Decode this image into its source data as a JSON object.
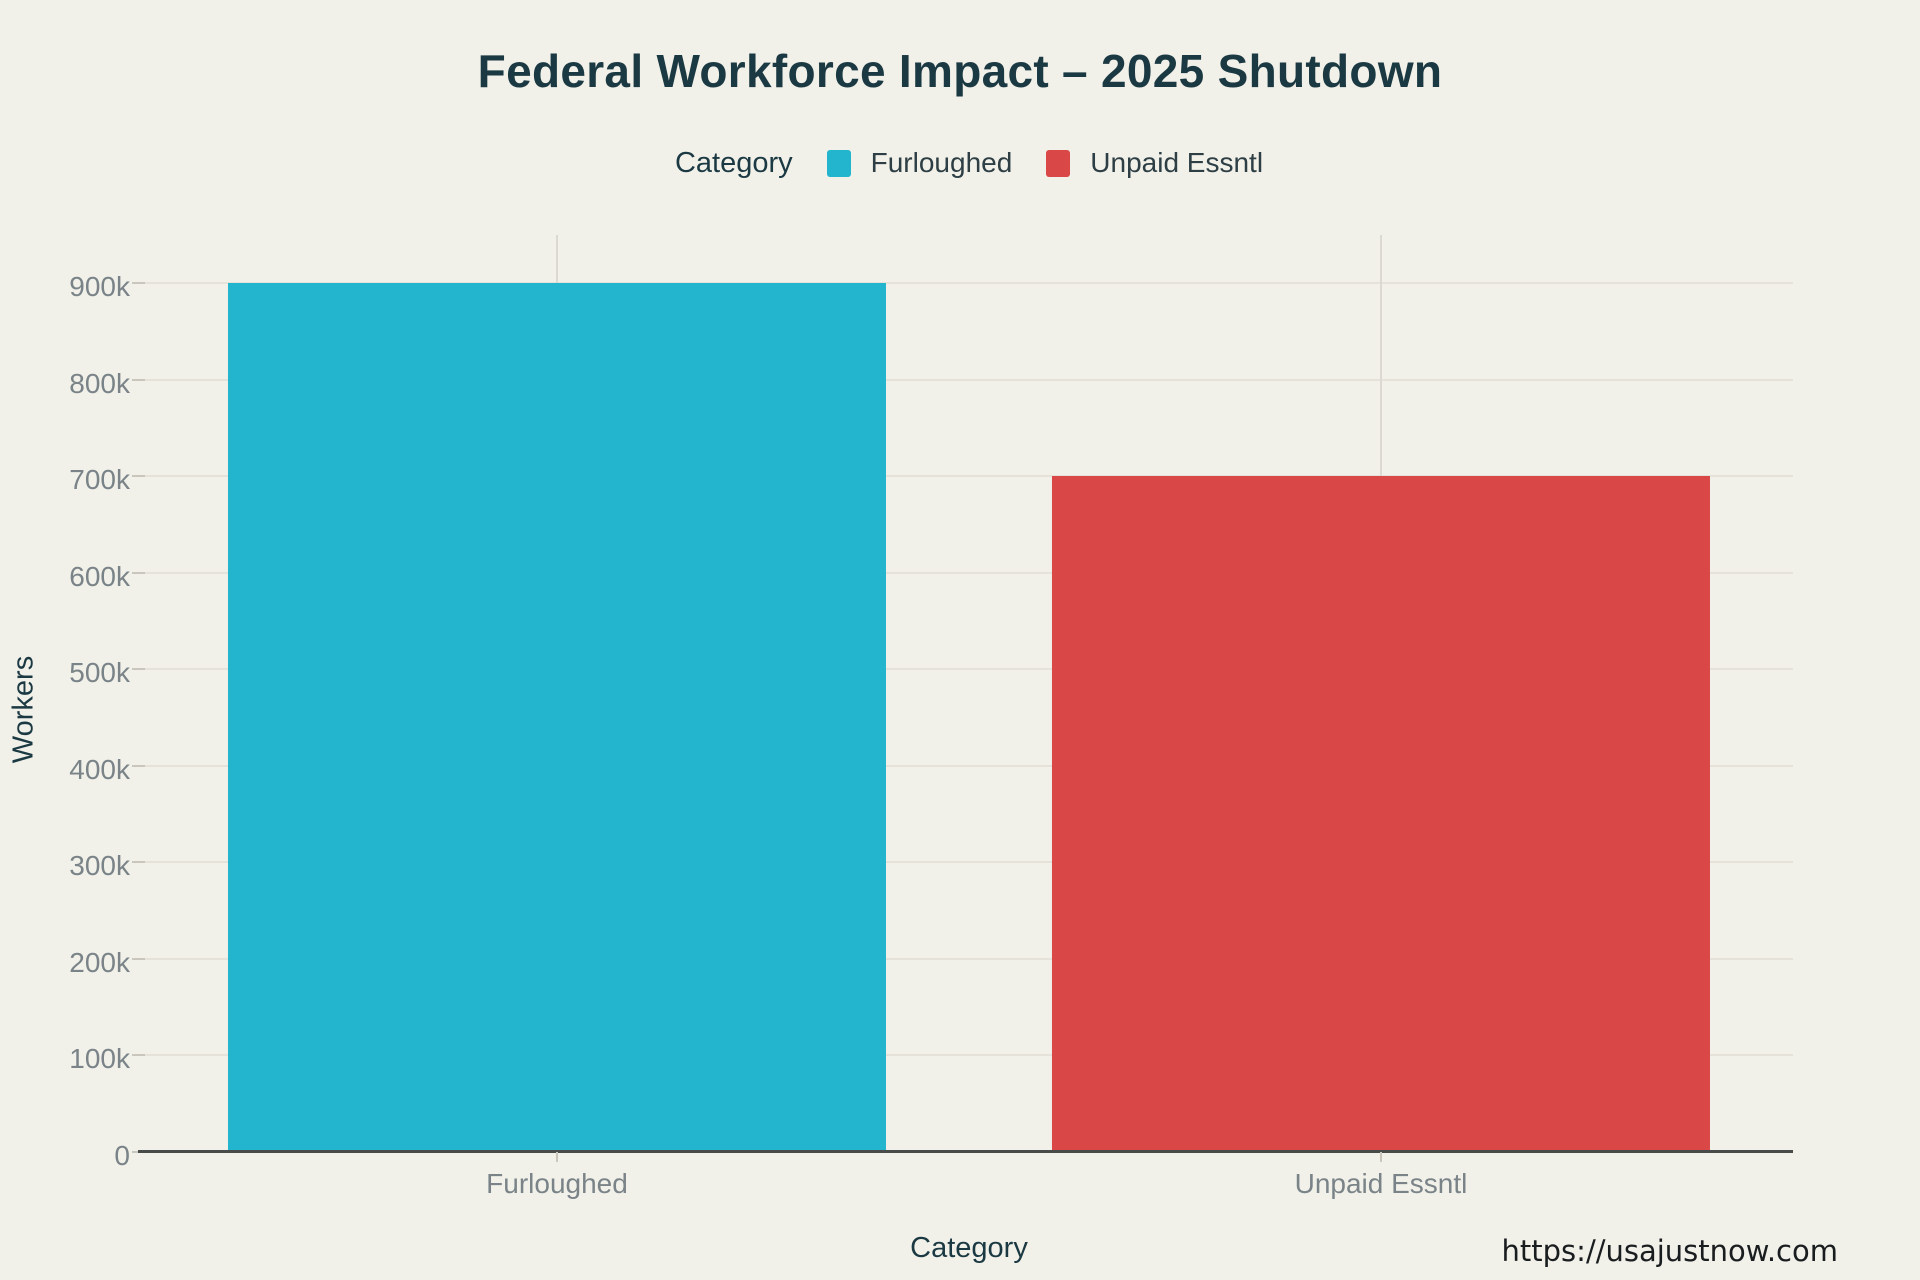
{
  "page": {
    "background_color": "#f1f0e9"
  },
  "header": {
    "title": "Federal Workforce Impact – 2025 Shutdown",
    "title_color": "#1b3942"
  },
  "legend": {
    "title": "Category",
    "position": "top",
    "items": [
      {
        "label": "Furloughed",
        "color": "#22b5cd"
      },
      {
        "label": "Unpaid Essntl",
        "color": "#d94747"
      }
    ]
  },
  "chart_data": {
    "type": "bar",
    "title": "Federal Workforce Impact – 2025 Shutdown",
    "categories": [
      "Furloughed",
      "Unpaid Essntl"
    ],
    "values": [
      900000,
      700000
    ],
    "series": [
      {
        "name": "Furloughed",
        "value": 900000,
        "color": "#22b5cd"
      },
      {
        "name": "Unpaid Essntl",
        "value": 700000,
        "color": "#d94747"
      }
    ],
    "xlabel": "Category",
    "ylabel": "Workers",
    "ylim": [
      0,
      950000
    ],
    "yticks": {
      "values": [
        0,
        100000,
        200000,
        300000,
        400000,
        500000,
        600000,
        700000,
        800000,
        900000
      ],
      "labels": [
        "0",
        "100k",
        "200k",
        "300k",
        "400k",
        "500k",
        "600k",
        "700k",
        "800k",
        "900k"
      ]
    },
    "grid": true,
    "gridline_color": "#e5e2d9",
    "category_gridline_color": "#dcd9d0",
    "axis_line_color": "#474b49",
    "tick_label_color": "#7a8488",
    "legend_position": "top"
  },
  "footer": {
    "source_url": "https://usajustnow.com"
  }
}
